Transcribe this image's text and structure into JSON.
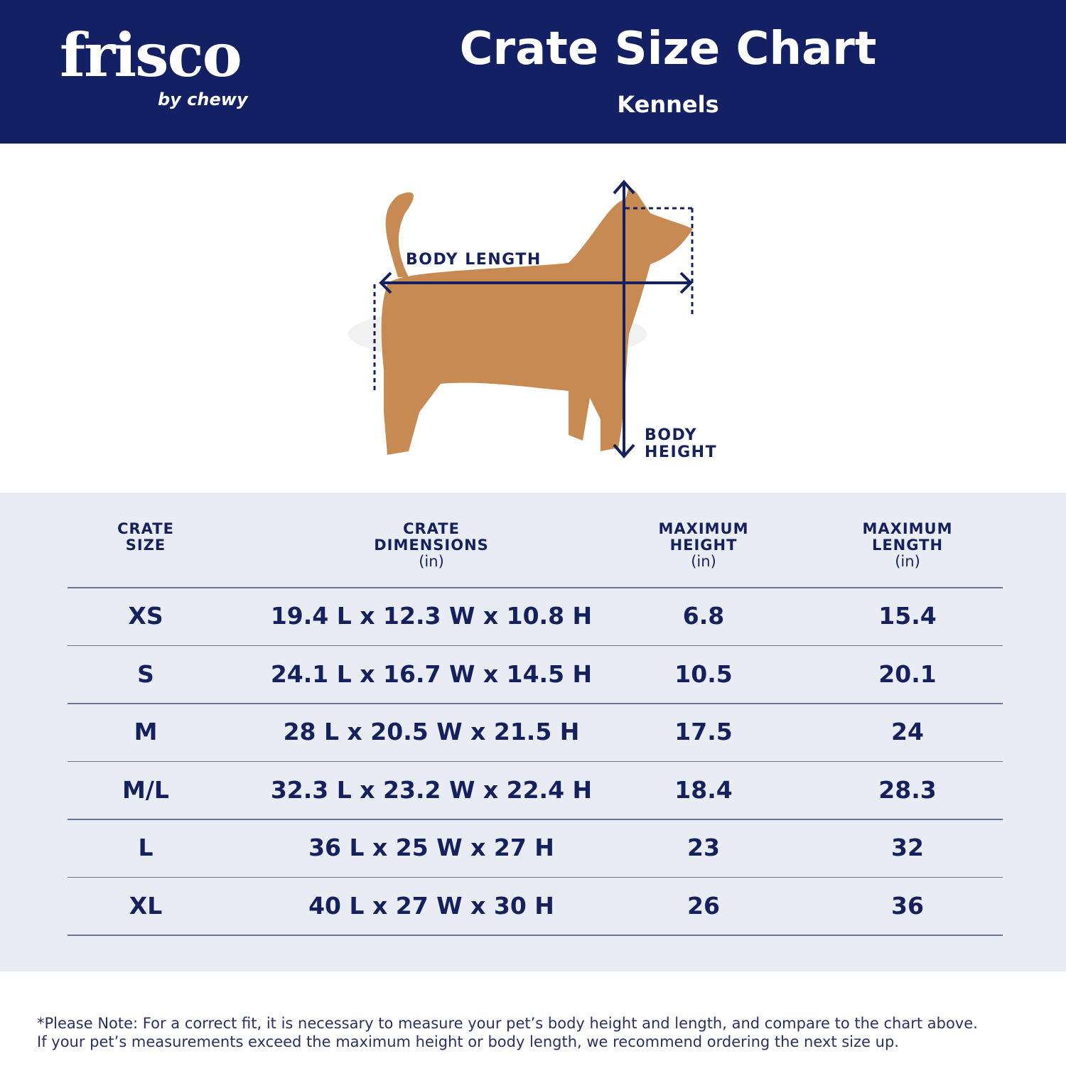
{
  "header": {
    "logo": "frisco",
    "logo_byline": "by chewy",
    "title": "Crate Size Chart",
    "subtitle": "Kennels"
  },
  "diagram": {
    "length_label": "BODY LENGTH",
    "height_label": [
      "BODY",
      "HEIGHT"
    ]
  },
  "table": {
    "columns": [
      {
        "title": [
          "CRATE",
          "SIZE"
        ]
      },
      {
        "title": [
          "CRATE",
          "DIMENSIONS"
        ],
        "unit": "(in)"
      },
      {
        "title": [
          "MAXIMUM",
          "HEIGHT"
        ],
        "unit": "(in)"
      },
      {
        "title": [
          "MAXIMUM",
          "LENGTH"
        ],
        "unit": "(in)"
      }
    ],
    "rows": [
      [
        "XS",
        "19.4 L x 12.3 W x 10.8 H",
        6.8,
        15.4
      ],
      [
        "S",
        "24.1 L x 16.7 W x 14.5 H",
        10.5,
        20.1
      ],
      [
        "M",
        "28 L x 20.5 W x 21.5 H",
        17.5,
        24
      ],
      [
        "M/L",
        "32.3 L x 23.2 W x 22.4 H",
        18.4,
        28.3
      ],
      [
        "L",
        "36 L x 25 W x 27 H",
        23,
        32
      ],
      [
        "XL",
        "40 L x 27 W x 30 H",
        26,
        36
      ]
    ]
  },
  "note": [
    "*Please Note: For a correct fit, it is necessary to measure your pet’s body height and length, and compare to the chart above.",
    "If your pet’s measurements exceed the maximum height or body length, we recommend ordering the next size up."
  ]
}
